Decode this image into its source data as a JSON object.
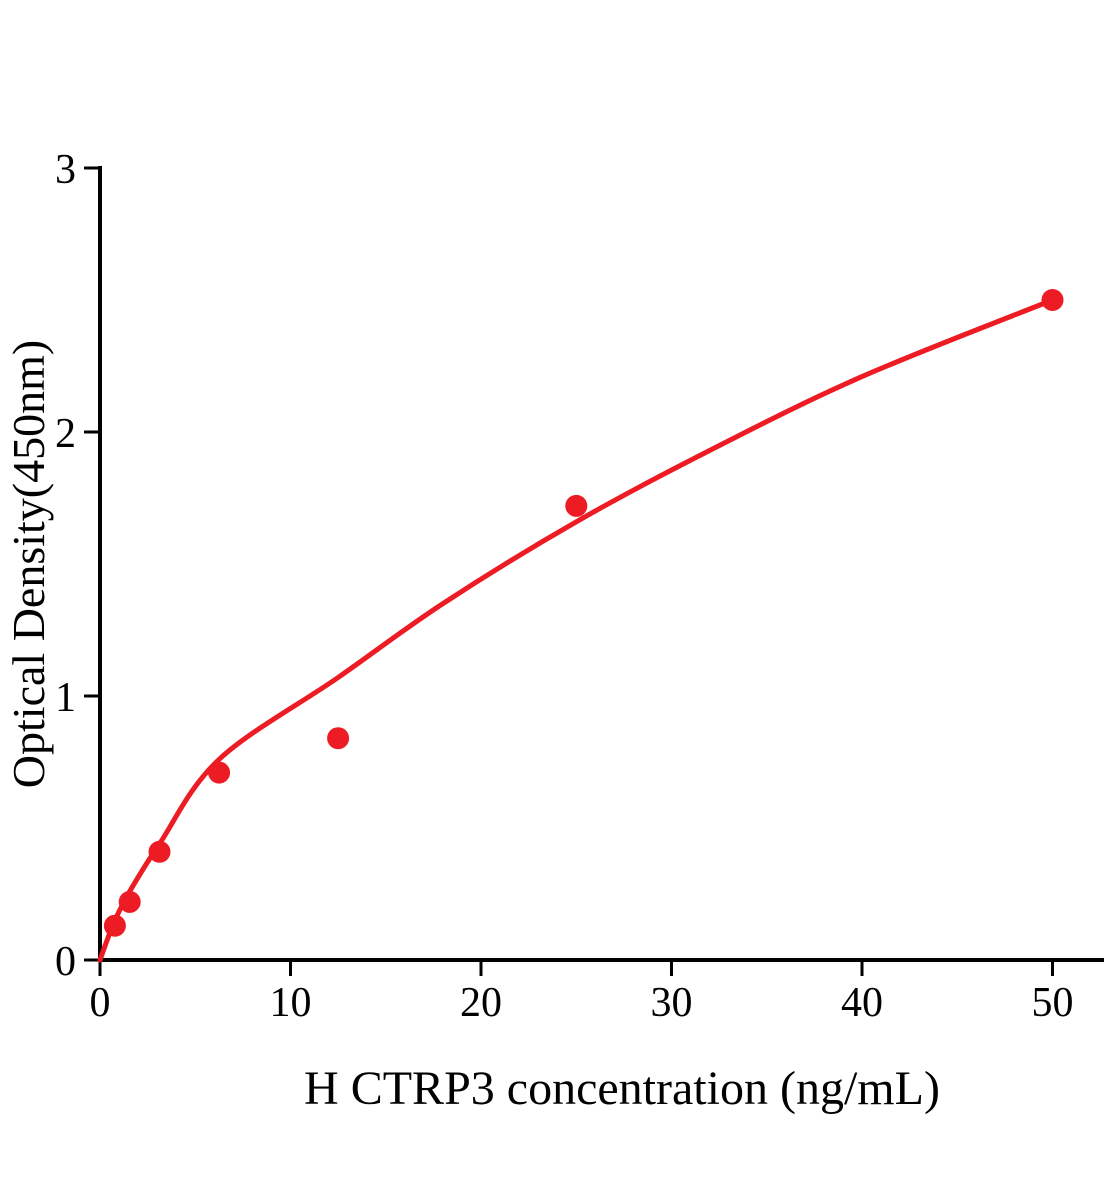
{
  "chart_data": {
    "type": "scatter",
    "title": "",
    "xlabel": "H CTRP3 concentration (ng/mL)",
    "ylabel": "Optical Density(450nm)",
    "xlim": [
      0,
      52.7
    ],
    "ylim": [
      0,
      3
    ],
    "x_ticks": [
      0,
      10,
      20,
      30,
      40,
      50
    ],
    "y_ticks": [
      0,
      1,
      2,
      3
    ],
    "grid": false,
    "legend_position": "none",
    "axis_color": "#000000",
    "accent_color": "#ed1c24",
    "series": [
      {
        "name": "standard-points",
        "type": "scatter",
        "color": "#ed1c24",
        "marker": "circle",
        "marker_radius_px": 11,
        "x": [
          0.78,
          1.56,
          3.125,
          6.25,
          12.5,
          25,
          50
        ],
        "y": [
          0.13,
          0.22,
          0.41,
          0.71,
          0.84,
          1.72,
          2.5
        ]
      },
      {
        "name": "fit-curve",
        "type": "line",
        "color": "#ed1c24",
        "stroke_width_px": 5,
        "x": [
          0,
          0.4,
          0.78,
          1.56,
          3.125,
          6.25,
          12.5,
          18,
          25,
          32,
          40,
          50
        ],
        "y": [
          0,
          0.08,
          0.15,
          0.26,
          0.44,
          0.76,
          1.07,
          1.35,
          1.66,
          1.93,
          2.21,
          2.5
        ]
      }
    ]
  }
}
